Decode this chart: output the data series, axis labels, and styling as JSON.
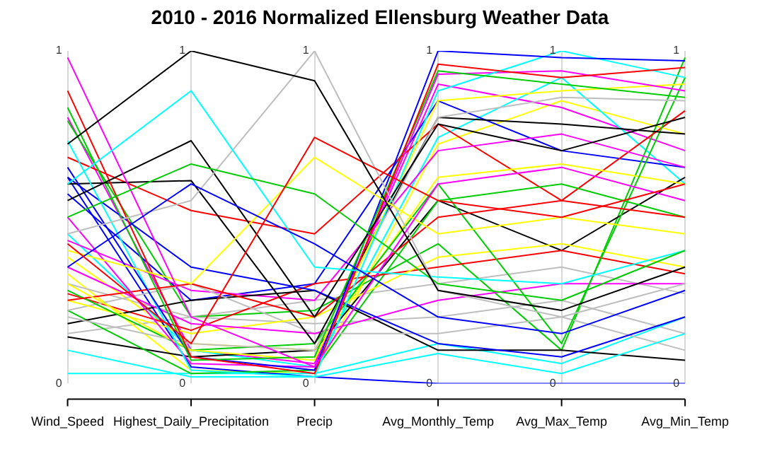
{
  "chart_data": {
    "type": "line",
    "title": "2010 - 2016 Normalized Ellensburg Weather Data",
    "categories": [
      "Wind_Speed",
      "Highest_Daily_Precipitation",
      "Precip",
      "Avg_Monthly_Temp",
      "Avg_Max_Temp",
      "Avg_Min_Temp"
    ],
    "ylim": [
      0,
      1
    ],
    "yticks": [
      0,
      1
    ],
    "annotations": [
      {
        "text": "1",
        "x": "Highest_Daily_Precipitation",
        "y": 1
      },
      {
        "text": "1",
        "x": "Precip",
        "y": 1
      },
      {
        "text": "1",
        "x": "Avg_Monthly_Temp",
        "y": 1
      },
      {
        "text": "1",
        "x": "Avg_Max_Temp",
        "y": 1
      },
      {
        "text": "1",
        "x": "Avg_Min_Temp",
        "y": 1
      },
      {
        "text": "0",
        "x": "Highest_Daily_Precipitation",
        "y": 0
      },
      {
        "text": "0",
        "x": "Precip",
        "y": 0
      },
      {
        "text": "0",
        "x": "Avg_Monthly_Temp",
        "y": 0
      },
      {
        "text": "0",
        "x": "Avg_Max_Temp",
        "y": 0
      },
      {
        "text": "0",
        "x": "Avg_Min_Temp",
        "y": 0
      }
    ],
    "grid": "x",
    "marker": "none",
    "legend": false,
    "series": [
      {
        "color": "#000000",
        "values": [
          0.72,
          1.0,
          0.91,
          0.28,
          0.22,
          0.35
        ]
      },
      {
        "color": "#ff0000",
        "values": [
          0.42,
          0.12,
          0.74,
          0.55,
          0.5,
          0.6
        ]
      },
      {
        "color": "#00cd00",
        "values": [
          0.5,
          0.66,
          0.57,
          0.3,
          0.25,
          0.4
        ]
      },
      {
        "color": "#0000ff",
        "values": [
          0.35,
          0.6,
          0.42,
          0.2,
          0.15,
          0.28
        ]
      },
      {
        "color": "#00ffff",
        "values": [
          0.6,
          0.88,
          0.35,
          0.32,
          0.3,
          0.4
        ]
      },
      {
        "color": "#ff00ff",
        "values": [
          0.98,
          0.2,
          0.05,
          0.6,
          0.65,
          0.55
        ]
      },
      {
        "color": "#ffff00",
        "values": [
          0.4,
          0.3,
          0.68,
          0.45,
          0.5,
          0.45
        ]
      },
      {
        "color": "#bebebe",
        "values": [
          0.45,
          0.55,
          1.0,
          0.28,
          0.2,
          0.3
        ]
      },
      {
        "color": "#000000",
        "values": [
          0.55,
          0.73,
          0.2,
          0.78,
          0.7,
          0.8
        ]
      },
      {
        "color": "#ff0000",
        "values": [
          0.88,
          0.08,
          0.03,
          0.96,
          0.92,
          0.95
        ]
      },
      {
        "color": "#00cd00",
        "values": [
          0.83,
          0.07,
          0.08,
          0.94,
          0.9,
          0.86
        ]
      },
      {
        "color": "#0000ff",
        "values": [
          0.65,
          0.08,
          0.04,
          1.0,
          0.98,
          0.97
        ]
      },
      {
        "color": "#00ffff",
        "values": [
          0.73,
          0.04,
          0.02,
          0.88,
          1.0,
          0.92
        ]
      },
      {
        "color": "#ff00ff",
        "values": [
          0.5,
          0.06,
          0.05,
          0.93,
          0.94,
          0.88
        ]
      },
      {
        "color": "#ffff00",
        "values": [
          0.3,
          0.1,
          0.07,
          0.85,
          0.88,
          0.9
        ]
      },
      {
        "color": "#bebebe",
        "values": [
          0.2,
          0.12,
          0.1,
          0.8,
          0.86,
          0.85
        ]
      },
      {
        "color": "#000000",
        "values": [
          0.6,
          0.61,
          0.12,
          0.8,
          0.78,
          0.75
        ]
      },
      {
        "color": "#ff0000",
        "values": [
          0.25,
          0.3,
          0.2,
          0.5,
          0.55,
          0.5
        ]
      },
      {
        "color": "#00cd00",
        "values": [
          0.28,
          0.1,
          0.12,
          0.6,
          0.12,
          0.92
        ]
      },
      {
        "color": "#0000ff",
        "values": [
          0.62,
          0.35,
          0.28,
          0.12,
          0.08,
          0.2
        ]
      },
      {
        "color": "#00ffff",
        "values": [
          0.1,
          0.02,
          0.02,
          0.09,
          0.03,
          0.15
        ]
      },
      {
        "color": "#ff00ff",
        "values": [
          0.35,
          0.18,
          0.15,
          0.25,
          0.3,
          0.3
        ]
      },
      {
        "color": "#ffff00",
        "values": [
          0.25,
          0.15,
          0.2,
          0.38,
          0.42,
          0.35
        ]
      },
      {
        "color": "#bebebe",
        "values": [
          0.22,
          0.3,
          0.15,
          0.15,
          0.2,
          0.1
        ]
      },
      {
        "color": "#000000",
        "values": [
          0.18,
          0.25,
          0.28,
          0.1,
          0.1,
          0.07
        ]
      },
      {
        "color": "#ff0000",
        "values": [
          0.27,
          0.16,
          0.3,
          0.35,
          0.4,
          0.33
        ]
      },
      {
        "color": "#00cd00",
        "values": [
          0.22,
          0.03,
          0.04,
          0.55,
          0.6,
          0.5
        ]
      },
      {
        "color": "#0000ff",
        "values": [
          0.62,
          0.05,
          0.02,
          0.0,
          0.0,
          0.0
        ]
      },
      {
        "color": "#00ffff",
        "values": [
          0.03,
          0.03,
          0.03,
          0.12,
          0.06,
          0.2
        ]
      },
      {
        "color": "#ff00ff",
        "values": [
          0.43,
          0.28,
          0.25,
          0.7,
          0.75,
          0.65
        ]
      },
      {
        "color": "#ffff00",
        "values": [
          0.38,
          0.12,
          0.1,
          0.62,
          0.66,
          0.6
        ]
      },
      {
        "color": "#bebebe",
        "values": [
          0.3,
          0.2,
          0.18,
          0.2,
          0.25,
          0.15
        ]
      },
      {
        "color": "#000000",
        "values": [
          0.14,
          0.08,
          0.1,
          0.55,
          0.4,
          0.62
        ]
      },
      {
        "color": "#ff0000",
        "values": [
          0.68,
          0.52,
          0.45,
          0.78,
          0.55,
          0.82
        ]
      },
      {
        "color": "#00cd00",
        "values": [
          0.79,
          0.2,
          0.22,
          0.42,
          0.1,
          0.98
        ]
      },
      {
        "color": "#0000ff",
        "values": [
          0.57,
          0.25,
          0.3,
          0.85,
          0.7,
          0.65
        ]
      },
      {
        "color": "#00ffff",
        "values": [
          0.45,
          0.1,
          0.05,
          0.74,
          0.92,
          0.6
        ]
      },
      {
        "color": "#ff00ff",
        "values": [
          0.8,
          0.1,
          0.06,
          0.9,
          0.83,
          0.7
        ]
      },
      {
        "color": "#ffff00",
        "values": [
          0.33,
          0.04,
          0.03,
          0.72,
          0.85,
          0.75
        ]
      },
      {
        "color": "#bebebe",
        "values": [
          0.15,
          0.2,
          0.25,
          0.3,
          0.35,
          0.27
        ]
      }
    ]
  }
}
